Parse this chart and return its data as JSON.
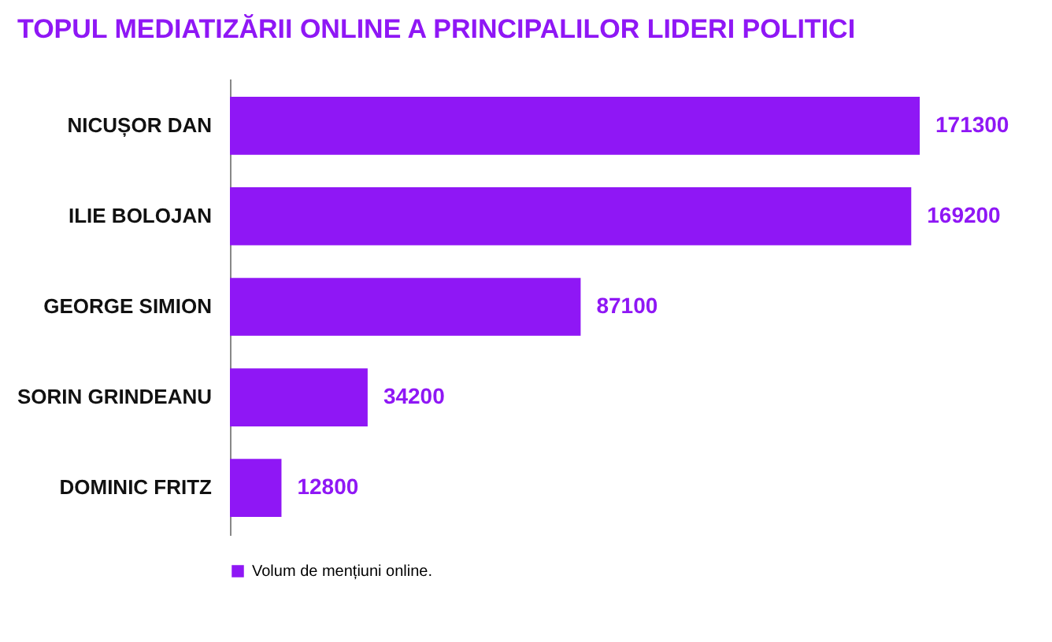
{
  "chart_data": {
    "type": "bar",
    "orientation": "horizontal",
    "title": "TOPUL MEDIATIZĂRII ONLINE A PRINCIPALILOR LIDERI POLITICI",
    "categories": [
      "NICUȘOR DAN",
      "ILIE BOLOJAN",
      "GEORGE SIMION",
      "SORIN GRINDEANU",
      "DOMINIC FRITZ"
    ],
    "series": [
      {
        "name": "Volum de mențiuni online.",
        "color": "#8f17f5",
        "values": [
          171300,
          169200,
          87100,
          34200,
          12800
        ]
      }
    ],
    "data_labels": true,
    "tick_labels": "y",
    "legend": "bottom",
    "grid": false
  }
}
